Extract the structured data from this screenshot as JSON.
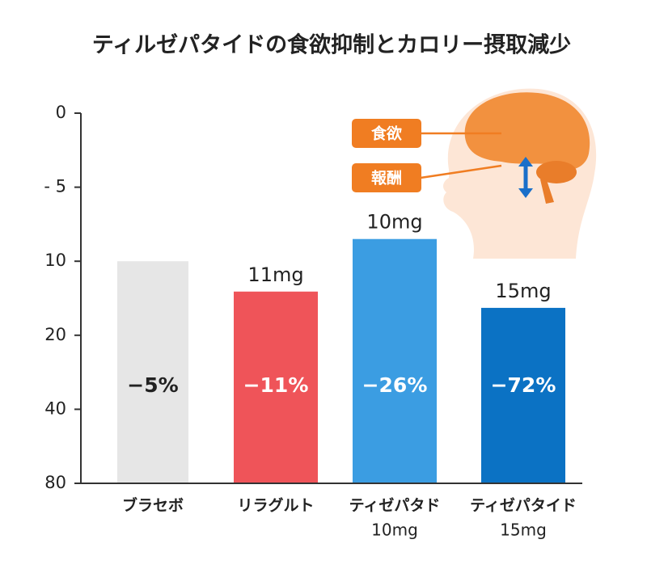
{
  "chart_data": {
    "type": "bar",
    "title": "ティルゼパタイドの食欲抑制とカロリー摂取減少",
    "categories": [
      "ブラセボ",
      "リラグルト",
      "ティゼパタド",
      "ティゼパタイド"
    ],
    "category_sublabels": [
      null,
      null,
      "10mg",
      "15mg"
    ],
    "values": [
      10,
      14.1,
      8.5,
      16.3
    ],
    "bar_labels": [
      "−5%",
      "−11%",
      "−26%",
      "−72%"
    ],
    "dose_labels": [
      null,
      "11mg",
      "10mg",
      "15mg"
    ],
    "colors": [
      "#e6e6e6",
      "#ef5459",
      "#3b9de2",
      "#0b72c4"
    ],
    "bar_label_colors": [
      "#222222",
      "#ffffff",
      "#ffffff",
      "#ffffff"
    ],
    "yticks": [
      0,
      {
        "value": -5,
        "label": "- 5"
      },
      10,
      20,
      40,
      80
    ],
    "y_inverted": true,
    "illustration_labels": [
      "食欲",
      "報酬"
    ]
  }
}
